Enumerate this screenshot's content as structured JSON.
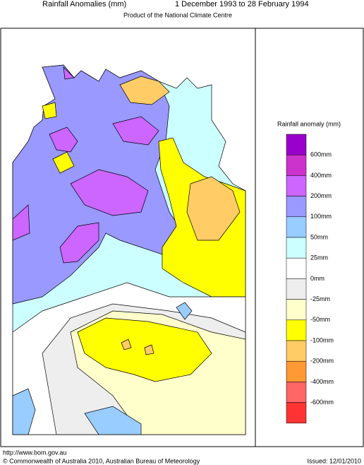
{
  "header": {
    "title": "Rainfall Anomalies (mm)",
    "period": "1 December 1993 to 28 February 1994",
    "subtitle": "Product of the National Climate Centre"
  },
  "legend": {
    "title": "Rainfall anomaly (mm)",
    "colors": [
      "#9900cc",
      "#cc33cc",
      "#cc66ff",
      "#9999ff",
      "#99ccff",
      "#ccffff",
      "#ffffff",
      "#eeeeee",
      "#ffffcc",
      "#ffff00",
      "#ffcc66",
      "#ff9933",
      "#ff6666",
      "#ff3333"
    ],
    "labels": [
      "600mm",
      "400mm",
      "200mm",
      "100mm",
      "50mm",
      "25mm",
      "0mm",
      "-25mm",
      "-50mm",
      "-100mm",
      "-200mm",
      "-400mm",
      "-600mm"
    ]
  },
  "footer": {
    "url": "http://www.bom.gov.au",
    "copyright": "© Commonwealth of Australia 2010, Australian Bureau of Meteorology",
    "issued": "Issued: 12/01/2010"
  }
}
